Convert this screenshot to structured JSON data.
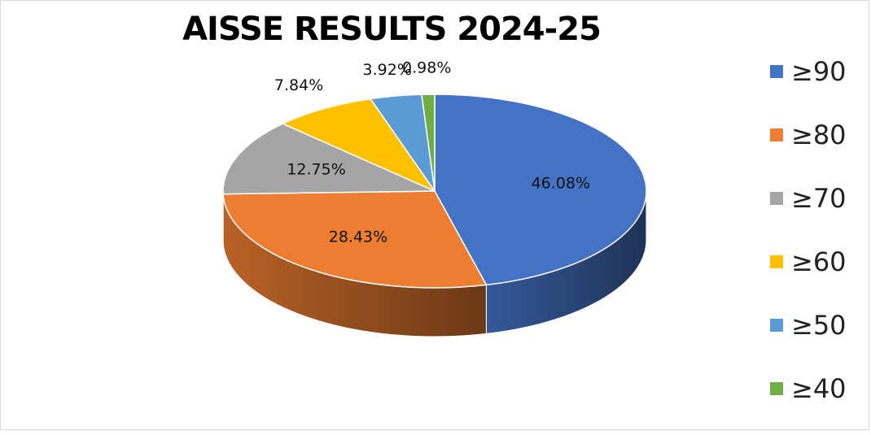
{
  "chart_data": {
    "type": "pie",
    "title": "AISSE RESULTS 2024-25",
    "categories": [
      "≥90",
      "≥80",
      "≥70",
      "≥60",
      "≥50",
      "≥40"
    ],
    "values": [
      46.08,
      28.43,
      12.75,
      7.84,
      3.92,
      0.98
    ],
    "data_labels": [
      "46.08%",
      "28.43%",
      "12.75%",
      "7.84%",
      "3.92%",
      "0.98%"
    ],
    "colors": [
      "#4472C4",
      "#ED7D31",
      "#A5A5A5",
      "#FFC000",
      "#5B9BD5",
      "#70AD47"
    ],
    "legend_position": "right",
    "style": "3d"
  }
}
